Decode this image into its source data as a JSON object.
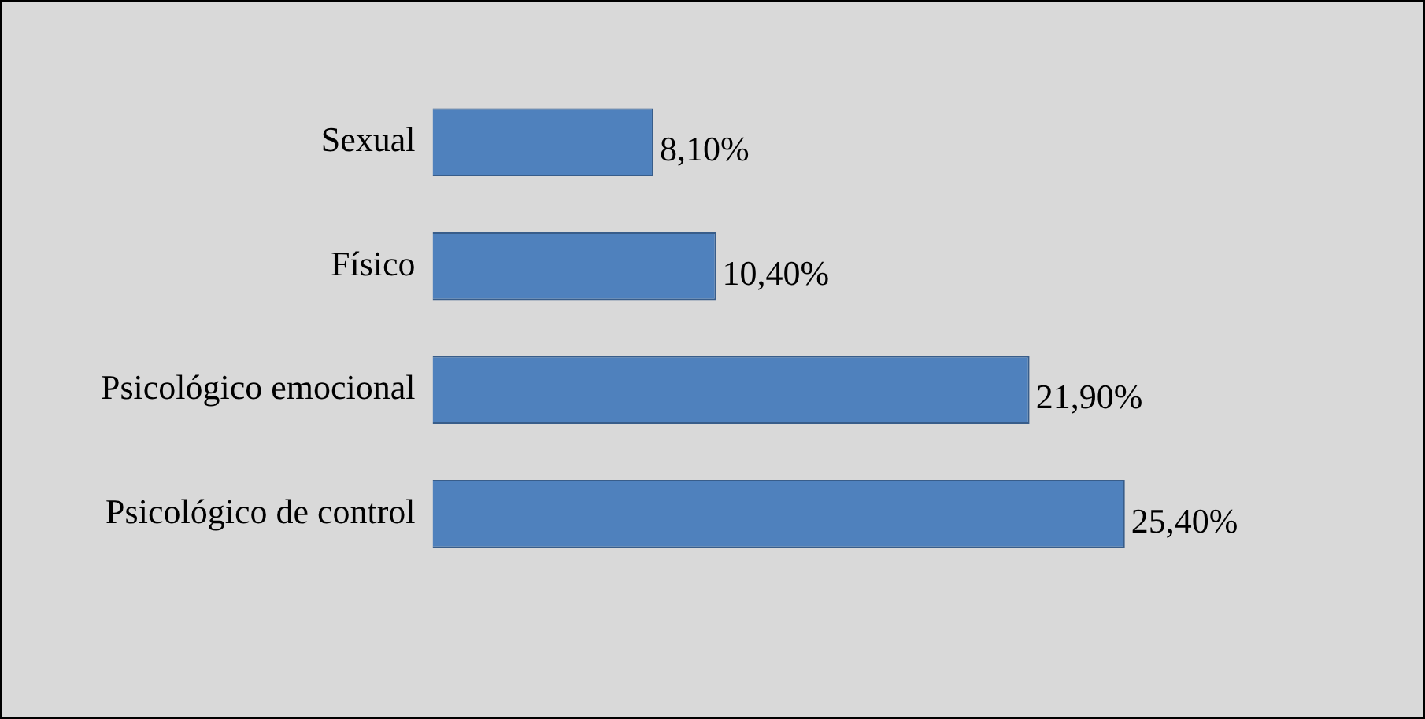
{
  "chart_data": {
    "type": "bar",
    "orientation": "horizontal",
    "categories": [
      "Sexual",
      "Físico",
      "Psicológico emocional",
      "Psicológico de control"
    ],
    "values": [
      8.1,
      10.4,
      21.9,
      25.4
    ],
    "color": "#4f81bd",
    "value_labels": [
      "8,10%",
      "10,40%",
      "21,90%",
      "25,40%"
    ],
    "grid": false,
    "legend": false
  }
}
